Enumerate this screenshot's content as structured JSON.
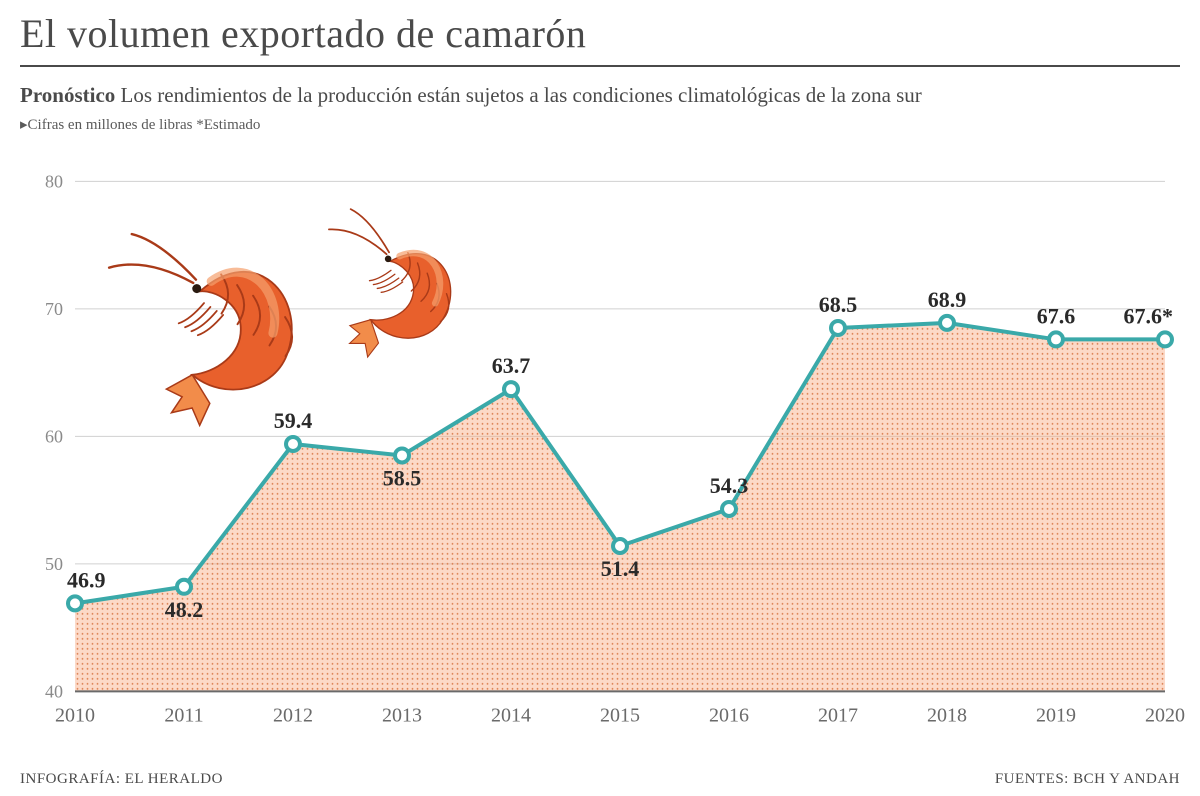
{
  "title": "El volumen exportado de camarón",
  "subtitle_bold": "Pronóstico",
  "subtitle_rest": " Los rendimientos de la producción están sujetos a las condiciones climatológicas de la zona sur",
  "note": "▸Cifras en millones de libras *Estimado",
  "footer_left": "INFOGRAFÍA: EL HERALDO",
  "footer_right": "FUENTES: BCH Y ANDAH",
  "chart": {
    "type": "line-area",
    "years": [
      "2010",
      "2011",
      "2012",
      "2013",
      "2014",
      "2015",
      "2016",
      "2017",
      "2018",
      "2019",
      "2020"
    ],
    "values": [
      46.9,
      48.2,
      59.4,
      58.5,
      63.7,
      51.4,
      54.3,
      68.5,
      68.9,
      67.6,
      67.6
    ],
    "value_labels": [
      "46.9",
      "48.2",
      "59.4",
      "58.5",
      "63.7",
      "51.4",
      "54.3",
      "68.5",
      "68.9",
      "67.6",
      "67.6*"
    ],
    "label_pos": [
      "above",
      "below",
      "above",
      "below",
      "above",
      "below",
      "above",
      "above",
      "above",
      "above",
      "above"
    ],
    "ylim": [
      40,
      80
    ],
    "ytick_step": 10,
    "line_color": "#3aa9a9",
    "line_width": 4,
    "marker_fill": "#ffffff",
    "marker_stroke": "#3aa9a9",
    "marker_radius": 7,
    "marker_stroke_width": 4,
    "area_fill": "#f9a47a",
    "area_opacity": 0.42,
    "dot_pattern_color": "#d97a4a",
    "grid_color": "#d0d0d0",
    "axis_color": "#6a6a6a",
    "background_color": "#ffffff",
    "title_fontsize": 40,
    "subtitle_fontsize": 21,
    "label_fontsize": 22,
    "shrimp": {
      "body": "#e8602c",
      "light": "#f5a06c",
      "dark": "#a93a18",
      "tail": "#f28c4a"
    }
  }
}
